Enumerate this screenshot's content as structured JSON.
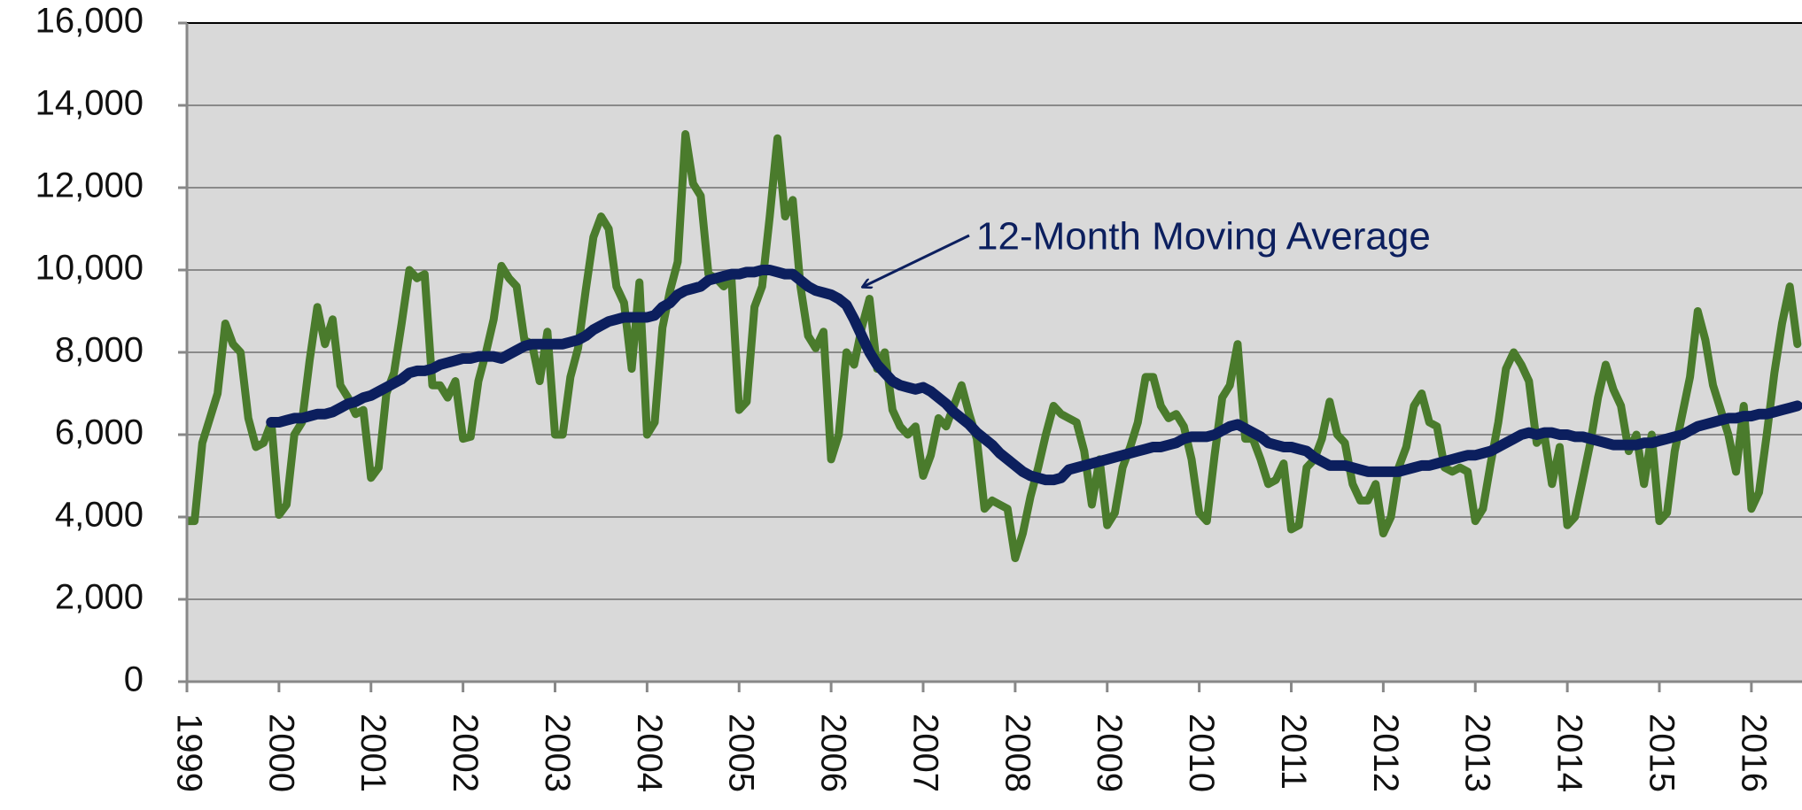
{
  "chart_data": {
    "type": "line",
    "x": [
      1999,
      1999.083,
      1999.167,
      1999.25,
      1999.333,
      1999.417,
      1999.5,
      1999.583,
      1999.667,
      1999.75,
      1999.833,
      1999.917,
      2000,
      2000.083,
      2000.167,
      2000.25,
      2000.333,
      2000.417,
      2000.5,
      2000.583,
      2000.667,
      2000.75,
      2000.833,
      2000.917,
      2001,
      2001.083,
      2001.167,
      2001.25,
      2001.333,
      2001.417,
      2001.5,
      2001.583,
      2001.667,
      2001.75,
      2001.833,
      2001.917,
      2002,
      2002.083,
      2002.167,
      2002.25,
      2002.333,
      2002.417,
      2002.5,
      2002.583,
      2002.667,
      2002.75,
      2002.833,
      2002.917,
      2003,
      2003.083,
      2003.167,
      2003.25,
      2003.333,
      2003.417,
      2003.5,
      2003.583,
      2003.667,
      2003.75,
      2003.833,
      2003.917,
      2004,
      2004.083,
      2004.167,
      2004.25,
      2004.333,
      2004.417,
      2004.5,
      2004.583,
      2004.667,
      2004.75,
      2004.833,
      2004.917,
      2005,
      2005.083,
      2005.167,
      2005.25,
      2005.333,
      2005.417,
      2005.5,
      2005.583,
      2005.667,
      2005.75,
      2005.833,
      2005.917,
      2006,
      2006.083,
      2006.167,
      2006.25,
      2006.333,
      2006.417,
      2006.5,
      2006.583,
      2006.667,
      2006.75,
      2006.833,
      2006.917,
      2007,
      2007.083,
      2007.167,
      2007.25,
      2007.333,
      2007.417,
      2007.5,
      2007.583,
      2007.667,
      2007.75,
      2007.833,
      2007.917,
      2008,
      2008.083,
      2008.167,
      2008.25,
      2008.333,
      2008.417,
      2008.5,
      2008.583,
      2008.667,
      2008.75,
      2008.833,
      2008.917,
      2009,
      2009.083,
      2009.167,
      2009.25,
      2009.333,
      2009.417,
      2009.5,
      2009.583,
      2009.667,
      2009.75,
      2009.833,
      2009.917,
      2010,
      2010.083,
      2010.167,
      2010.25,
      2010.333,
      2010.417,
      2010.5,
      2010.583,
      2010.667,
      2010.75,
      2010.833,
      2010.917,
      2011,
      2011.083,
      2011.167,
      2011.25,
      2011.333,
      2011.417,
      2011.5,
      2011.583,
      2011.667,
      2011.75,
      2011.833,
      2011.917,
      2012,
      2012.083,
      2012.167,
      2012.25,
      2012.333,
      2012.417,
      2012.5,
      2012.583,
      2012.667,
      2012.75,
      2012.833,
      2012.917,
      2013,
      2013.083,
      2013.167,
      2013.25,
      2013.333,
      2013.417,
      2013.5,
      2013.583,
      2013.667,
      2013.75,
      2013.833,
      2013.917,
      2014,
      2014.083,
      2014.167,
      2014.25,
      2014.333,
      2014.417,
      2014.5,
      2014.583,
      2014.667,
      2014.75,
      2014.833,
      2014.917,
      2015,
      2015.083,
      2015.167,
      2015.25,
      2015.333,
      2015.417,
      2015.5,
      2015.583,
      2015.667,
      2015.75,
      2015.833,
      2015.917,
      2016,
      2016.083,
      2016.167,
      2016.25,
      2016.333,
      2016.417,
      2016.5
    ],
    "series": [
      {
        "color": "#4a7b2c",
        "values": [
          3900,
          3900,
          5800,
          6400,
          7000,
          8700,
          8200,
          8000,
          6400,
          5700,
          5800,
          6300,
          4050,
          4300,
          6000,
          6300,
          7800,
          9100,
          8200,
          8800,
          7200,
          6900,
          6500,
          6600,
          4950,
          5200,
          7000,
          7500,
          8700,
          10000,
          9800,
          9900,
          7200,
          7200,
          6900,
          7300,
          5900,
          5950,
          7300,
          8000,
          8800,
          10100,
          9800,
          9600,
          8300,
          8200,
          7300,
          8500,
          6000,
          6000,
          7400,
          8100,
          9500,
          10800,
          11300,
          11000,
          9600,
          9200,
          7600,
          9700,
          6000,
          6300,
          8600,
          9500,
          10200,
          13300,
          12100,
          11800,
          9900,
          9800,
          9600,
          9800,
          6600,
          6800,
          9100,
          9600,
          11300,
          13200,
          11300,
          11700,
          9600,
          8400,
          8100,
          8500,
          5400,
          6000,
          8000,
          7700,
          8600,
          9300,
          7600,
          8000,
          6600,
          6200,
          6000,
          6200,
          5000,
          5500,
          6400,
          6200,
          6700,
          7200,
          6500,
          5900,
          4200,
          4400,
          4300,
          4200,
          3000,
          3600,
          4500,
          5200,
          6000,
          6700,
          6500,
          6400,
          6300,
          5600,
          4300,
          5400,
          3800,
          4100,
          5200,
          5700,
          6300,
          7400,
          7400,
          6700,
          6400,
          6500,
          6200,
          5400,
          4100,
          3900,
          5500,
          6900,
          7200,
          8200,
          5900,
          5900,
          5400,
          4800,
          4900,
          5300,
          3700,
          3800,
          5200,
          5400,
          5900,
          6800,
          6000,
          5800,
          4800,
          4400,
          4400,
          4800,
          3600,
          4000,
          5200,
          5700,
          6700,
          7000,
          6300,
          6200,
          5200,
          5100,
          5200,
          5100,
          3900,
          4200,
          5300,
          6300,
          7600,
          8000,
          7700,
          7300,
          5800,
          6000,
          4800,
          5700,
          3800,
          4000,
          4900,
          5800,
          6900,
          7700,
          7100,
          6700,
          5600,
          6000,
          4800,
          6000,
          3900,
          4100,
          5600,
          6500,
          7400,
          9000,
          8300,
          7200,
          6600,
          6000,
          5100,
          6700,
          4200,
          4600,
          6000,
          7500,
          8700,
          9600,
          8200
        ]
      },
      {
        "name": "12-Month Moving Average",
        "color": "#0c1f5e",
        "values": [
          null,
          null,
          null,
          null,
          null,
          null,
          null,
          null,
          null,
          null,
          null,
          6300,
          6300,
          6350,
          6400,
          6400,
          6450,
          6500,
          6500,
          6550,
          6650,
          6750,
          6800,
          6900,
          6950,
          7050,
          7150,
          7250,
          7350,
          7500,
          7550,
          7550,
          7600,
          7700,
          7750,
          7800,
          7850,
          7850,
          7900,
          7900,
          7900,
          7850,
          7950,
          8050,
          8150,
          8200,
          8200,
          8200,
          8200,
          8200,
          8250,
          8300,
          8400,
          8550,
          8650,
          8750,
          8800,
          8850,
          8850,
          8850,
          8850,
          8900,
          9100,
          9200,
          9400,
          9500,
          9550,
          9600,
          9750,
          9800,
          9850,
          9900,
          9900,
          9950,
          9950,
          10000,
          10000,
          9950,
          9900,
          9900,
          9750,
          9600,
          9500,
          9450,
          9400,
          9300,
          9150,
          8800,
          8400,
          8000,
          7700,
          7500,
          7300,
          7200,
          7150,
          7100,
          7150,
          7050,
          6900,
          6750,
          6550,
          6400,
          6250,
          6050,
          5900,
          5750,
          5550,
          5400,
          5250,
          5100,
          5000,
          4950,
          4900,
          4900,
          4950,
          5150,
          5200,
          5250,
          5300,
          5350,
          5400,
          5450,
          5500,
          5550,
          5600,
          5650,
          5700,
          5700,
          5750,
          5800,
          5900,
          5950,
          5950,
          5950,
          6000,
          6100,
          6200,
          6250,
          6150,
          6050,
          5950,
          5800,
          5750,
          5700,
          5700,
          5650,
          5600,
          5450,
          5350,
          5250,
          5250,
          5250,
          5200,
          5150,
          5100,
          5100,
          5100,
          5100,
          5100,
          5150,
          5200,
          5250,
          5250,
          5300,
          5350,
          5400,
          5450,
          5500,
          5500,
          5550,
          5600,
          5700,
          5800,
          5900,
          6000,
          6050,
          6000,
          6050,
          6050,
          6000,
          6000,
          5950,
          5950,
          5900,
          5850,
          5800,
          5750,
          5750,
          5750,
          5750,
          5800,
          5800,
          5850,
          5900,
          5950,
          6000,
          6100,
          6200,
          6250,
          6300,
          6350,
          6400,
          6400,
          6450,
          6450,
          6500,
          6500,
          6550,
          6600,
          6650,
          6700
        ]
      }
    ],
    "xlim": [
      1999,
      2016.55
    ],
    "xticks": [
      1999,
      2000,
      2001,
      2002,
      2003,
      2004,
      2005,
      2006,
      2007,
      2008,
      2009,
      2010,
      2011,
      2012,
      2013,
      2014,
      2015,
      2016
    ],
    "ylim": [
      0,
      16000
    ],
    "yticks": [
      0,
      {
        "value": 2000,
        "label": "2,000"
      },
      {
        "value": 4000,
        "label": "4,000"
      },
      {
        "value": 6000,
        "label": "6,000"
      },
      {
        "value": 8000,
        "label": "8,000"
      },
      {
        "value": 10000,
        "label": "10,000"
      },
      {
        "value": 12000,
        "label": "12,000"
      },
      {
        "value": 14000,
        "label": "14,000"
      },
      {
        "value": 16000,
        "label": "16,000"
      }
    ],
    "grid": true
  }
}
